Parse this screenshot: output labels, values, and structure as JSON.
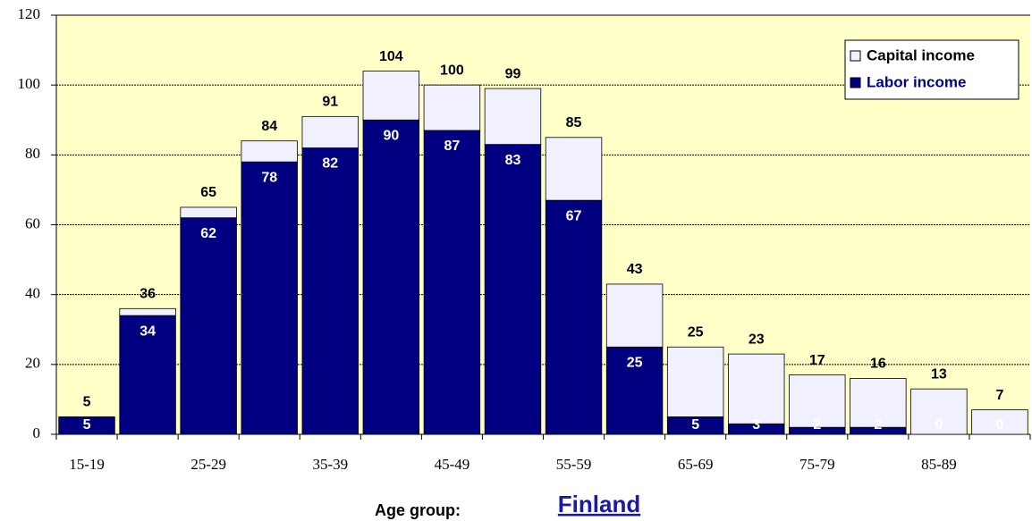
{
  "chart_data": {
    "type": "stacked_bar",
    "categories": [
      "15-19",
      null,
      "25-29",
      null,
      "35-39",
      null,
      "45-49",
      null,
      "55-59",
      null,
      "65-69",
      null,
      "75-79",
      null,
      "85-89",
      null
    ],
    "series": [
      {
        "name": "Labor income",
        "color": "#000080",
        "values": [
          5,
          34,
          62,
          78,
          82,
          90,
          87,
          83,
          67,
          25,
          5,
          3,
          2,
          2,
          0,
          0
        ]
      },
      {
        "name": "Capital income",
        "color": "#f0f0ff",
        "values": [
          0,
          2,
          3,
          6,
          9,
          14,
          13,
          16,
          18,
          18,
          20,
          20,
          15,
          14,
          13,
          7
        ]
      }
    ],
    "totals": [
      5,
      36,
      65,
      84,
      91,
      104,
      100,
      99,
      85,
      43,
      25,
      23,
      17,
      16,
      13,
      7
    ],
    "ylim": [
      0,
      120
    ],
    "yticks": [
      0,
      20,
      40,
      60,
      80,
      100,
      120
    ],
    "grid": true,
    "legend": "upper right",
    "background": "#ffffc8",
    "xlabel": "Age group:"
  },
  "link": "Finland"
}
